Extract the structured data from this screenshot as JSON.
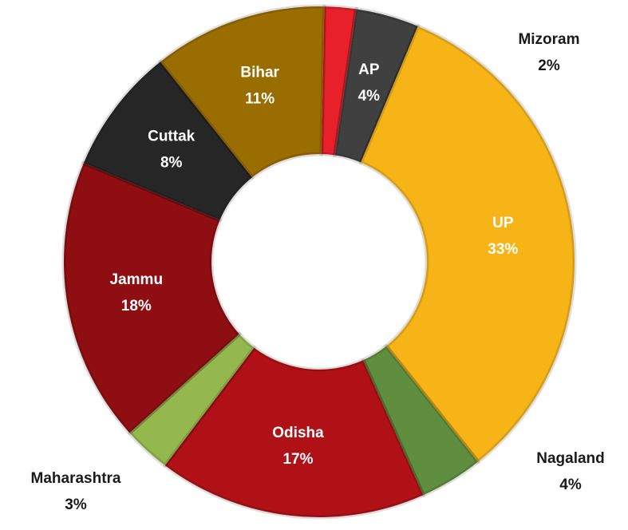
{
  "chart_data": {
    "type": "pie",
    "categories": [
      "Mizoram",
      "AP",
      "UP",
      "Nagaland",
      "Odisha",
      "Maharashtra",
      "Jammu",
      "Cuttak",
      "Bihar"
    ],
    "values": [
      2,
      4,
      33,
      4,
      17,
      3,
      18,
      8,
      11
    ],
    "value_labels": [
      "2%",
      "4%",
      "33%",
      "4%",
      "17%",
      "3%",
      "18%",
      "8%",
      "11%"
    ],
    "colors": [
      "#e8202a",
      "#404040",
      "#f6b417",
      "#5f8f3e",
      "#b01116",
      "#94b84e",
      "#8e0e12",
      "#262626",
      "#9a6d00"
    ]
  }
}
